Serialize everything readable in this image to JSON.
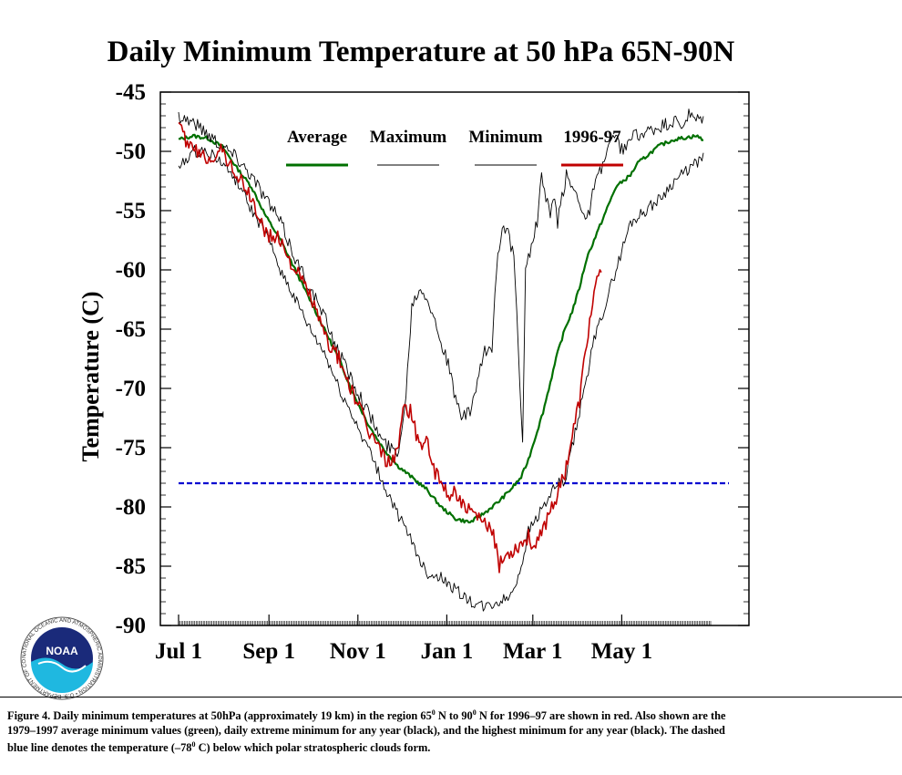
{
  "chart_data": {
    "type": "line",
    "title": "Daily Minimum Temperature at 50 hPa 65N-90N",
    "xlabel": "",
    "ylabel": "Temperature (C)",
    "ylim": [
      -90,
      -45
    ],
    "yticks": [
      -45,
      -50,
      -55,
      -60,
      -65,
      -70,
      -75,
      -80,
      -85,
      -90
    ],
    "x_unit": "day of season starting Jul 1",
    "xlim": [
      0,
      365
    ],
    "xticks": [
      {
        "label": "Jul 1",
        "day": 0
      },
      {
        "label": "Sep 1",
        "day": 62
      },
      {
        "label": "Nov 1",
        "day": 123
      },
      {
        "label": "Jan 1",
        "day": 184
      },
      {
        "label": "Mar 1",
        "day": 243
      },
      {
        "label": "May 1",
        "day": 304
      }
    ],
    "legend_position": "top",
    "series": [
      {
        "name": "Average",
        "color": "#007000",
        "width": 2.2,
        "x": [
          0,
          10,
          20,
          30,
          40,
          50,
          60,
          70,
          80,
          90,
          100,
          110,
          120,
          130,
          140,
          150,
          160,
          170,
          180,
          190,
          200,
          210,
          220,
          228,
          235,
          240,
          245,
          250,
          255,
          260,
          265,
          270,
          275,
          280,
          285,
          290,
          295,
          300,
          305,
          310,
          315,
          320,
          330,
          340,
          350,
          355,
          360
        ],
        "y": [
          -49,
          -48.7,
          -48.9,
          -49.6,
          -51.4,
          -53,
          -55.5,
          -57.5,
          -60,
          -62.5,
          -65,
          -67.5,
          -70.5,
          -73,
          -75,
          -76.5,
          -77.5,
          -78.5,
          -80,
          -81,
          -81.3,
          -80.5,
          -79.5,
          -78.5,
          -77.5,
          -76,
          -74,
          -72,
          -69.5,
          -67,
          -65,
          -63.5,
          -61.5,
          -59,
          -57.5,
          -56,
          -54.5,
          -53,
          -52.5,
          -52,
          -51,
          -50.5,
          -49.5,
          -49,
          -48.8,
          -48.7,
          -49
        ]
      },
      {
        "name": "Maximum",
        "color": "#000000",
        "width": 0.9,
        "x": [
          0,
          10,
          20,
          30,
          40,
          50,
          60,
          70,
          80,
          90,
          100,
          110,
          120,
          130,
          140,
          150,
          155,
          160,
          165,
          170,
          175,
          180,
          185,
          190,
          195,
          200,
          205,
          210,
          215,
          218,
          222,
          226,
          230,
          232,
          234,
          236,
          238,
          240,
          243,
          246,
          249,
          252,
          255,
          258,
          260,
          263,
          266,
          270,
          275,
          280,
          285,
          290,
          295,
          300,
          305,
          310,
          315,
          320,
          330,
          340,
          345,
          350,
          355,
          360
        ],
        "y": [
          -47,
          -47.5,
          -48.5,
          -49.5,
          -50.5,
          -52,
          -54,
          -56,
          -59,
          -61.5,
          -64,
          -67,
          -69.5,
          -72,
          -74.5,
          -75.5,
          -72,
          -63,
          -61.5,
          -62,
          -64,
          -66,
          -68,
          -71,
          -72.5,
          -72,
          -69.5,
          -67,
          -66.5,
          -60,
          -56,
          -57,
          -59,
          -64,
          -70,
          -74,
          -60,
          -59,
          -57.5,
          -56,
          -52,
          -54,
          -55.5,
          -54,
          -56,
          -54,
          -52,
          -53,
          -54,
          -56,
          -53,
          -51.5,
          -49.5,
          -49,
          -50,
          -49,
          -48.5,
          -48.5,
          -48,
          -47.5,
          -48,
          -47,
          -47.5,
          -47.2
        ]
      },
      {
        "name": "Minimum",
        "color": "#000000",
        "width": 0.9,
        "x": [
          0,
          10,
          20,
          30,
          40,
          50,
          60,
          70,
          80,
          90,
          100,
          110,
          120,
          130,
          140,
          150,
          160,
          170,
          180,
          190,
          200,
          210,
          220,
          228,
          235,
          240,
          245,
          250,
          255,
          260,
          265,
          270,
          275,
          280,
          285,
          290,
          295,
          300,
          305,
          310,
          315,
          320,
          330,
          340,
          350,
          355,
          360
        ],
        "y": [
          -51.5,
          -50,
          -50,
          -51,
          -52.5,
          -55,
          -57,
          -60,
          -62.5,
          -65,
          -67,
          -70,
          -72.5,
          -75,
          -78,
          -80.5,
          -83,
          -85.5,
          -86,
          -87,
          -88,
          -88.5,
          -88,
          -87.5,
          -85,
          -82,
          -81,
          -80,
          -79,
          -78,
          -78,
          -75,
          -72,
          -69,
          -66,
          -64,
          -62,
          -60,
          -58,
          -56,
          -55.5,
          -55,
          -54,
          -52.5,
          -51.5,
          -51,
          -50.5
        ]
      },
      {
        "name": "1996-97",
        "color": "#c00000",
        "width": 1.6,
        "x": [
          0,
          10,
          20,
          30,
          40,
          50,
          60,
          70,
          80,
          90,
          100,
          110,
          120,
          130,
          140,
          145,
          150,
          155,
          160,
          165,
          170,
          175,
          180,
          185,
          190,
          195,
          200,
          205,
          210,
          215,
          220,
          225,
          230,
          235,
          240,
          245,
          250,
          255,
          260,
          265,
          270,
          275,
          280,
          285,
          290
        ],
        "y": [
          -48,
          -50,
          -50.5,
          -50,
          -52,
          -54,
          -57,
          -57.5,
          -60,
          -62,
          -65.5,
          -67.5,
          -70.5,
          -73.5,
          -75.5,
          -76.5,
          -75,
          -71.5,
          -72,
          -75,
          -74,
          -77,
          -78,
          -79,
          -78.5,
          -80,
          -80.5,
          -81,
          -81.5,
          -82,
          -85,
          -84,
          -83.5,
          -83,
          -82.5,
          -83.5,
          -82,
          -80,
          -79,
          -77,
          -74,
          -71,
          -66,
          -62,
          -60
        ]
      }
    ],
    "reference_lines": [
      {
        "y": -78,
        "color": "#0000d0",
        "style": "dashed"
      }
    ]
  },
  "caption": {
    "line1_a": "Figure 4. Daily minimum temperatures   at 50hPa (approximately 19 km) in the region 65",
    "sup1": "0",
    "line1_b": " N to 90",
    "sup2": "0",
    "line1_c": " N for 1996–97 are shown in red. Also shown are the",
    "line2": "1979–1997 average minimum values (green), daily extreme minimum for any year (black), and the highest minimum for any year (black). The dashed",
    "line3_a": "blue line denotes the temperature (–78",
    "sup3": "0",
    "line3_b": " C) below which polar stratospheric clouds form."
  },
  "logo": {
    "text": "NOAA",
    "ring_text": "NATIONAL OCEANIC AND ATMOSPHERIC ADMINISTRATION • U.S. DEPARTMENT OF COMMERCE •"
  }
}
